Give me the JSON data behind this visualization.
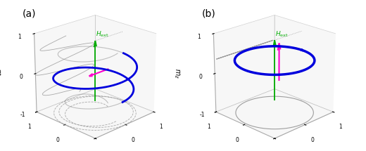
{
  "panel_a_label": "(a)",
  "panel_b_label": "(b)",
  "blue_color": "#0000dd",
  "green_color": "#00aa00",
  "magenta_color": "#ff00cc",
  "gray_color": "#888888",
  "light_gray": "#cccccc",
  "background": "#ffffff",
  "elev": 22,
  "azim": -135,
  "xlim": [
    -1,
    1
  ],
  "ylim": [
    -1,
    1
  ],
  "zlim": [
    -1,
    1
  ]
}
